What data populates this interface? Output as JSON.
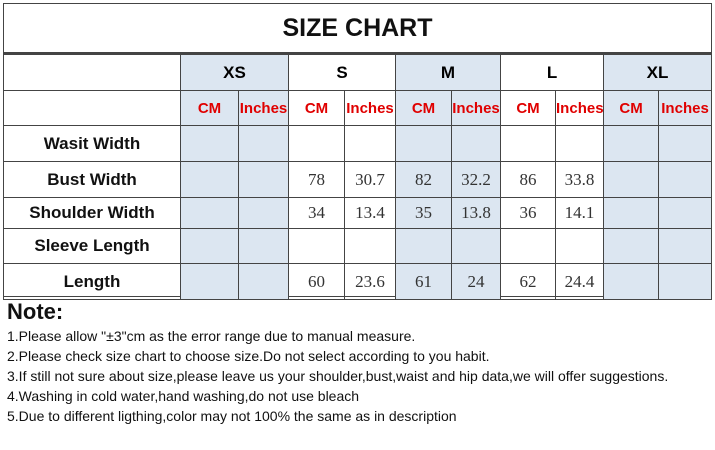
{
  "title": "SIZE CHART",
  "sizes": [
    "XS",
    "S",
    "M",
    "L",
    "XL"
  ],
  "units": [
    "CM",
    "Inches"
  ],
  "rows": [
    {
      "label": "Wasit Width",
      "values": [
        "",
        "",
        "",
        "",
        "",
        "",
        "",
        "",
        "",
        ""
      ]
    },
    {
      "label": "Bust Width",
      "values": [
        "",
        "",
        "78",
        "30.7",
        "82",
        "32.2",
        "86",
        "33.8",
        "",
        ""
      ]
    },
    {
      "label": "Shoulder Width",
      "values": [
        "",
        "",
        "34",
        "13.4",
        "35",
        "13.8",
        "36",
        "14.1",
        "",
        ""
      ]
    },
    {
      "label": "Sleeve Length",
      "values": [
        "",
        "",
        "",
        "",
        "",
        "",
        "",
        "",
        "",
        ""
      ]
    },
    {
      "label": "Length",
      "values": [
        "",
        "",
        "60",
        "23.6",
        "61",
        "24",
        "62",
        "24.4",
        "",
        ""
      ]
    }
  ],
  "colors": {
    "unit_text": "#e00000",
    "shaded_column": "#dce6f1"
  },
  "notes": {
    "heading": "Note:",
    "items": [
      "1.Please allow \"±3\"cm as the error range due to manual measure.",
      "2.Please check size chart to choose size.Do not select according to you habit.",
      "3.If still not sure about size,please leave us your shoulder,bust,waist and hip data,we will offer suggestions.",
      "4.Washing in cold water,hand washing,do not use bleach",
      "5.Due to different ligthing,color may not 100% the same as in description"
    ]
  }
}
